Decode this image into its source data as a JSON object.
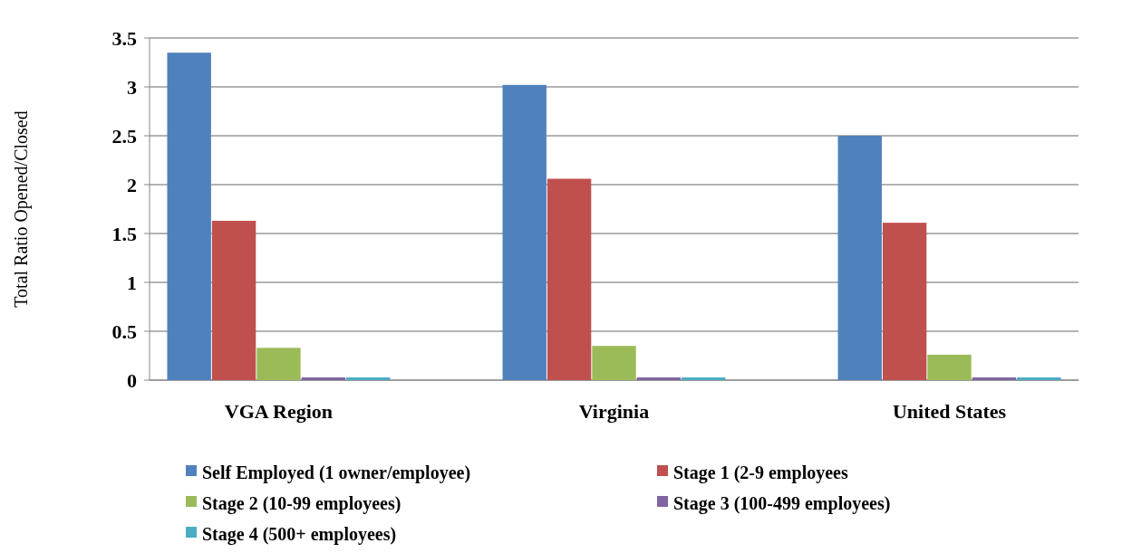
{
  "chart_data": {
    "type": "bar",
    "ylabel": "Total Ratio Opened/Closed",
    "categories": [
      "VGA Region",
      "Virginia",
      "United States"
    ],
    "series": [
      {
        "name": "Self Employed (1 owner/employee)",
        "color": "#4f81bd",
        "values": [
          3.35,
          3.02,
          2.5
        ]
      },
      {
        "name": "Stage 1 (2-9 employees",
        "color": "#c0504d",
        "values": [
          1.63,
          2.06,
          1.61
        ]
      },
      {
        "name": "Stage 2 (10-99 employees)",
        "color": "#9bbb59",
        "values": [
          0.33,
          0.35,
          0.26
        ]
      },
      {
        "name": "Stage 3 (100-499 employees)",
        "color": "#8064a2",
        "values": [
          0,
          0,
          0
        ]
      },
      {
        "name": "Stage 4 (500+ employees)",
        "color": "#4bacc6",
        "values": [
          0,
          0,
          0
        ]
      }
    ],
    "ylim": [
      0,
      3.5
    ],
    "yticks": [
      0,
      0.5,
      1,
      1.5,
      2,
      2.5,
      3,
      3.5
    ],
    "grid": "y",
    "legend": "bottom"
  }
}
